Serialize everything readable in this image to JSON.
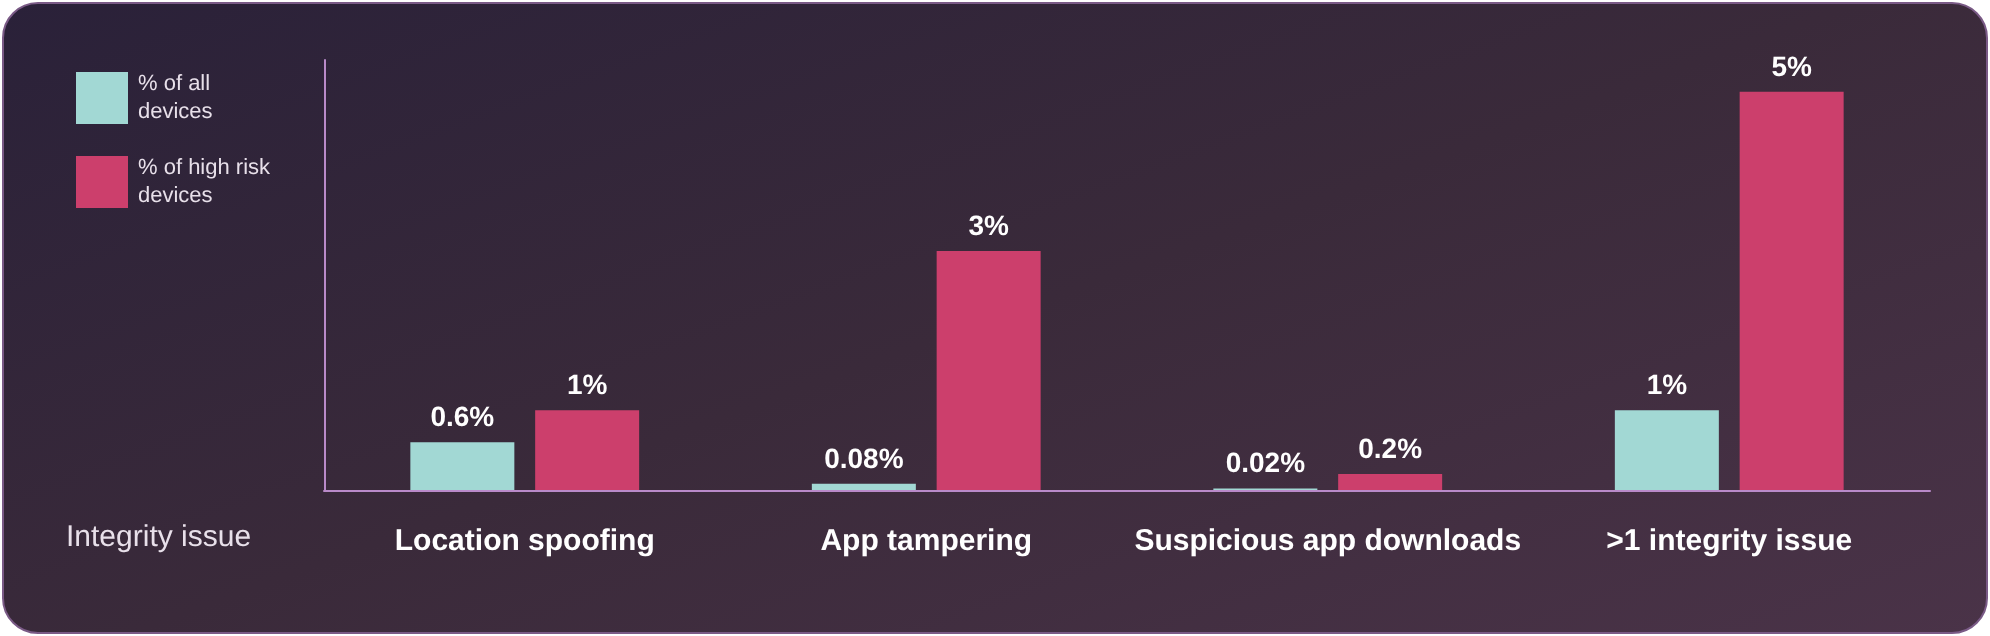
{
  "chart_data": {
    "type": "bar",
    "xlabel": "Integrity issue",
    "categories": [
      "Location spoofing",
      "App tampering",
      "Suspicious app downloads",
      ">1 integrity issue"
    ],
    "series": [
      {
        "name": "% of all devices",
        "color": "#a2d8d4",
        "values": [
          0.6,
          0.08,
          0.02,
          1
        ],
        "value_labels": [
          "0.6%",
          "0.08%",
          "0.02%",
          "1%"
        ]
      },
      {
        "name": "% of high risk devices",
        "color": "#cc3f6c",
        "values": [
          1,
          3,
          0.2,
          5
        ],
        "value_labels": [
          "1%",
          "3%",
          "0.2%",
          "5%"
        ]
      }
    ],
    "ylim": [
      0,
      5.4
    ],
    "tick_labels": "x",
    "grid": false,
    "legend": "top left"
  }
}
